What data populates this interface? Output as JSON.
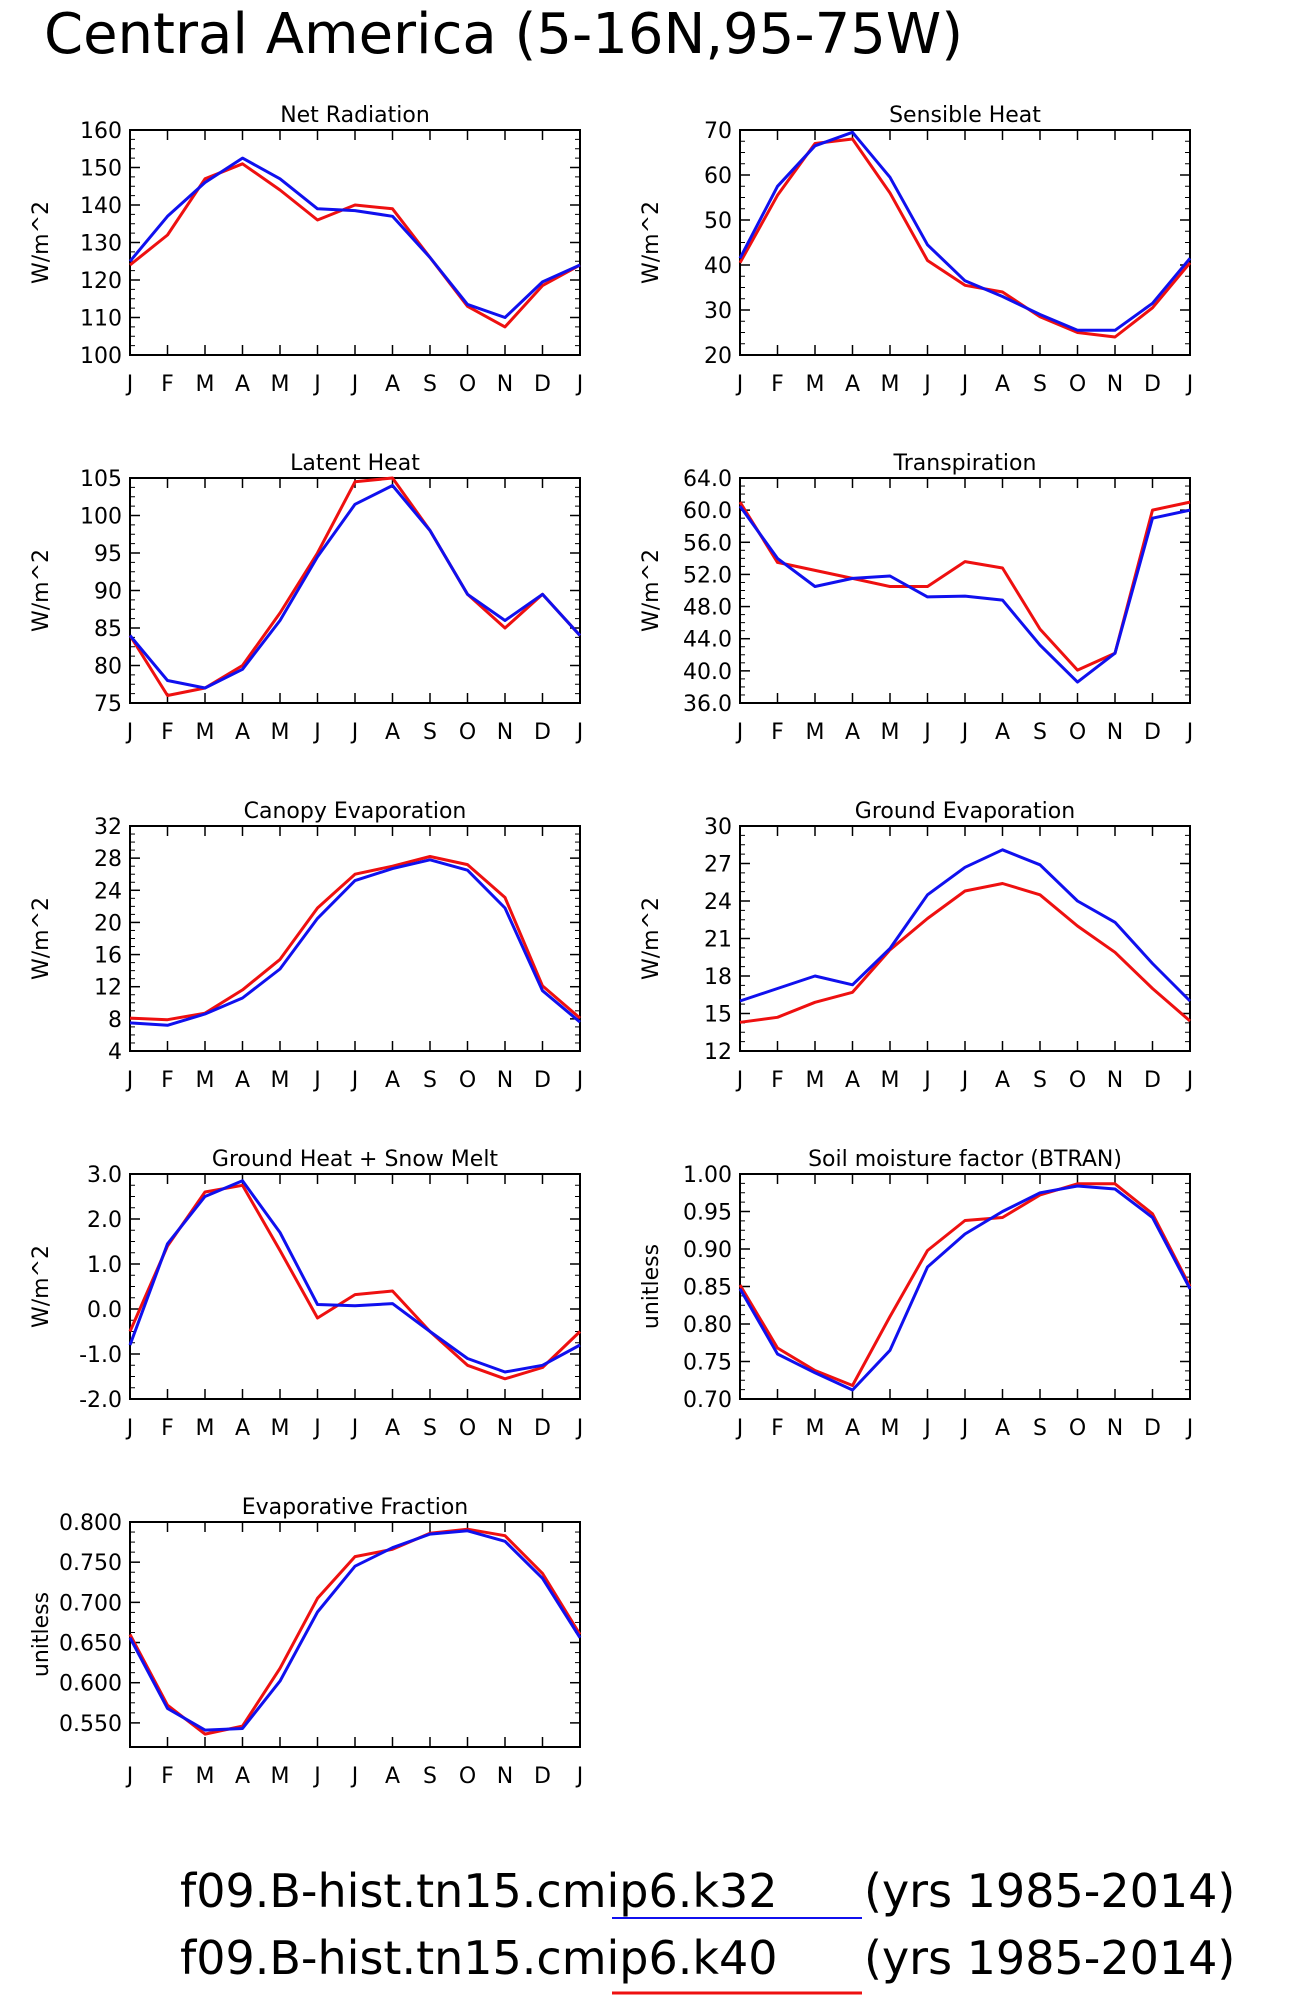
{
  "figure": {
    "title": "Central America (5-16N,95-75W)",
    "legend": [
      {
        "label": "f09.B-hist.tn15.cmip6.k32",
        "suffix": "(yrs 1985-2014)",
        "color": "#1010ee"
      },
      {
        "label": "f09.B-hist.tn15.cmip6.k40",
        "suffix": "(yrs 1985-2014)",
        "color": "#ee1010"
      }
    ]
  },
  "chart_data": [
    {
      "type": "line",
      "title": "Net Radiation",
      "ylabel": "W/m^2",
      "x": [
        "J",
        "F",
        "M",
        "A",
        "M",
        "J",
        "J",
        "A",
        "S",
        "O",
        "N",
        "D",
        "J"
      ],
      "ylim": [
        100,
        160
      ],
      "yticks": [
        "100",
        "110",
        "120",
        "130",
        "140",
        "150",
        "160"
      ],
      "series": [
        {
          "color": "#1010ee",
          "values": [
            125,
            137,
            146,
            152.5,
            147,
            139,
            138.5,
            137,
            126,
            113.5,
            110,
            119.5,
            124
          ]
        },
        {
          "color": "#ee1010",
          "values": [
            124,
            132,
            147,
            151,
            144,
            136,
            140,
            139,
            126,
            113,
            107.5,
            118.5,
            124
          ]
        }
      ]
    },
    {
      "type": "line",
      "title": "Sensible Heat",
      "ylabel": "W/m^2",
      "x": [
        "J",
        "F",
        "M",
        "A",
        "M",
        "J",
        "J",
        "A",
        "S",
        "O",
        "N",
        "D",
        "J"
      ],
      "ylim": [
        20,
        70
      ],
      "yticks": [
        "20",
        "30",
        "40",
        "50",
        "60",
        "70"
      ],
      "series": [
        {
          "color": "#1010ee",
          "values": [
            41.5,
            57.5,
            66.5,
            69.5,
            59.5,
            44.5,
            36.5,
            33,
            29,
            25.5,
            25.5,
            31.5,
            41.5
          ]
        },
        {
          "color": "#ee1010",
          "values": [
            40.5,
            55.5,
            67,
            68,
            56,
            41,
            35.5,
            34,
            28.5,
            25,
            24,
            30.5,
            40.5
          ]
        }
      ]
    },
    {
      "type": "line",
      "title": "Latent Heat",
      "ylabel": "W/m^2",
      "x": [
        "J",
        "F",
        "M",
        "A",
        "M",
        "J",
        "J",
        "A",
        "S",
        "O",
        "N",
        "D",
        "J"
      ],
      "ylim": [
        75,
        105
      ],
      "yticks": [
        "75",
        "80",
        "85",
        "90",
        "95",
        "100",
        "105"
      ],
      "series": [
        {
          "color": "#1010ee",
          "values": [
            84,
            78,
            77,
            79.5,
            86,
            94.5,
            101.5,
            104,
            98,
            89.5,
            86,
            89.5,
            84
          ]
        },
        {
          "color": "#ee1010",
          "values": [
            84,
            76,
            77,
            80,
            87,
            95,
            104.5,
            105,
            98,
            89.5,
            85,
            89.5,
            84
          ]
        }
      ]
    },
    {
      "type": "line",
      "title": "Transpiration",
      "ylabel": "W/m^2",
      "x": [
        "J",
        "F",
        "M",
        "A",
        "M",
        "J",
        "J",
        "A",
        "S",
        "O",
        "N",
        "D",
        "J"
      ],
      "ylim": [
        36,
        64
      ],
      "yticks": [
        "36.0",
        "40.0",
        "44.0",
        "48.0",
        "52.0",
        "56.0",
        "60.0",
        "64.0"
      ],
      "series": [
        {
          "color": "#1010ee",
          "values": [
            60.5,
            54,
            50.5,
            51.5,
            51.8,
            49.2,
            49.3,
            48.8,
            43.2,
            38.6,
            42.2,
            59,
            60
          ]
        },
        {
          "color": "#ee1010",
          "values": [
            61,
            53.5,
            52.5,
            51.5,
            50.5,
            50.5,
            53.6,
            52.8,
            45.2,
            40.1,
            42.2,
            60,
            61
          ]
        }
      ]
    },
    {
      "type": "line",
      "title": "Canopy Evaporation",
      "ylabel": "W/m^2",
      "x": [
        "J",
        "F",
        "M",
        "A",
        "M",
        "J",
        "J",
        "A",
        "S",
        "O",
        "N",
        "D",
        "J"
      ],
      "ylim": [
        4,
        32
      ],
      "yticks": [
        "4",
        "8",
        "12",
        "16",
        "20",
        "24",
        "28",
        "32"
      ],
      "series": [
        {
          "color": "#1010ee",
          "values": [
            7.5,
            7.2,
            8.6,
            10.6,
            14.2,
            20.5,
            25.2,
            26.7,
            27.8,
            26.5,
            21.8,
            11.5,
            7.6
          ]
        },
        {
          "color": "#ee1010",
          "values": [
            8.1,
            7.9,
            8.7,
            11.6,
            15.4,
            21.8,
            26,
            27,
            28.2,
            27.2,
            23.1,
            12.1,
            8.1
          ]
        }
      ]
    },
    {
      "type": "line",
      "title": "Ground Evaporation",
      "ylabel": "W/m^2",
      "x": [
        "J",
        "F",
        "M",
        "A",
        "M",
        "J",
        "J",
        "A",
        "S",
        "O",
        "N",
        "D",
        "J"
      ],
      "ylim": [
        12,
        30
      ],
      "yticks": [
        "12",
        "15",
        "18",
        "21",
        "24",
        "27",
        "30"
      ],
      "series": [
        {
          "color": "#1010ee",
          "values": [
            16,
            17,
            18,
            17.3,
            20.2,
            24.5,
            26.7,
            28.1,
            26.9,
            24,
            22.3,
            19,
            16
          ]
        },
        {
          "color": "#ee1010",
          "values": [
            14.3,
            14.7,
            15.9,
            16.7,
            20.1,
            22.6,
            24.8,
            25.4,
            24.5,
            22,
            19.9,
            17,
            14.4
          ]
        }
      ]
    },
    {
      "type": "line",
      "title": "Ground Heat + Snow Melt",
      "ylabel": "W/m^2",
      "x": [
        "J",
        "F",
        "M",
        "A",
        "M",
        "J",
        "J",
        "A",
        "S",
        "O",
        "N",
        "D",
        "J"
      ],
      "ylim": [
        -2,
        3
      ],
      "yticks": [
        "-2.0",
        "-1.0",
        "0.0",
        "1.0",
        "2.0",
        "3.0"
      ],
      "series": [
        {
          "color": "#1010ee",
          "values": [
            -0.8,
            1.45,
            2.5,
            2.85,
            1.7,
            0.1,
            0.07,
            0.12,
            -0.5,
            -1.1,
            -1.4,
            -1.25,
            -0.8
          ]
        },
        {
          "color": "#ee1010",
          "values": [
            -0.5,
            1.4,
            2.6,
            2.75,
            1.3,
            -0.2,
            0.32,
            0.4,
            -0.5,
            -1.25,
            -1.55,
            -1.3,
            -0.5
          ]
        }
      ]
    },
    {
      "type": "line",
      "title": "Soil moisture factor (BTRAN)",
      "ylabel": "unitless",
      "x": [
        "J",
        "F",
        "M",
        "A",
        "M",
        "J",
        "J",
        "A",
        "S",
        "O",
        "N",
        "D",
        "J"
      ],
      "ylim": [
        0.7,
        1.0
      ],
      "yticks": [
        "0.70",
        "0.75",
        "0.80",
        "0.85",
        "0.90",
        "0.95",
        "1.00"
      ],
      "series": [
        {
          "color": "#1010ee",
          "values": [
            0.847,
            0.76,
            0.735,
            0.712,
            0.765,
            0.876,
            0.92,
            0.95,
            0.975,
            0.984,
            0.98,
            0.942,
            0.847
          ]
        },
        {
          "color": "#ee1010",
          "values": [
            0.852,
            0.768,
            0.738,
            0.718,
            0.81,
            0.898,
            0.938,
            0.942,
            0.972,
            0.987,
            0.987,
            0.947,
            0.85
          ]
        }
      ]
    },
    {
      "type": "line",
      "title": "Evaporative Fraction",
      "ylabel": "unitless",
      "x": [
        "J",
        "F",
        "M",
        "A",
        "M",
        "J",
        "J",
        "A",
        "S",
        "O",
        "N",
        "D",
        "J"
      ],
      "ylim": [
        0.52,
        0.8
      ],
      "yticks": [
        "0.550",
        "0.600",
        "0.650",
        "0.700",
        "0.750",
        "0.800"
      ],
      "series": [
        {
          "color": "#1010ee",
          "values": [
            0.656,
            0.568,
            0.541,
            0.543,
            0.602,
            0.688,
            0.745,
            0.768,
            0.785,
            0.789,
            0.776,
            0.73,
            0.656
          ]
        },
        {
          "color": "#ee1010",
          "values": [
            0.66,
            0.572,
            0.536,
            0.546,
            0.618,
            0.705,
            0.757,
            0.766,
            0.786,
            0.791,
            0.783,
            0.736,
            0.66
          ]
        }
      ]
    }
  ]
}
